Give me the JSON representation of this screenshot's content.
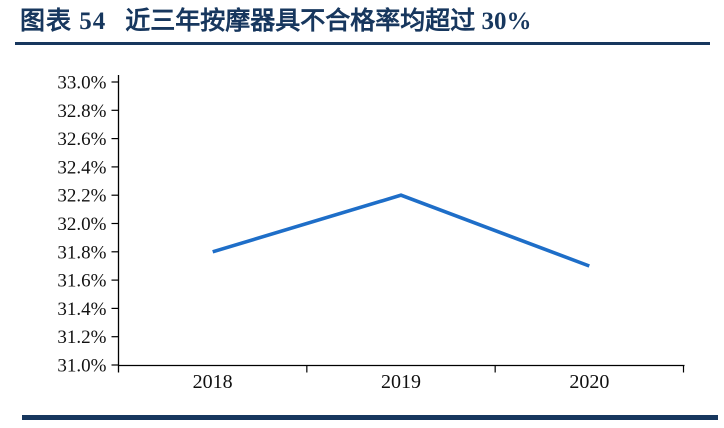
{
  "page": {
    "background_color": "#FFFFFF"
  },
  "header": {
    "figure_label": "图表 54",
    "figure_title": "近三年按摩器具不合格率均超过 30%"
  },
  "colors": {
    "navy_accent": "#17375E",
    "line_blue": "#1E6EC8",
    "axis_color": "#000000",
    "tick_label_color": "#111111"
  },
  "chart_data": {
    "type": "line",
    "title": "近三年按摩器具不合格率均超过 30%",
    "categories": [
      "2018",
      "2019",
      "2020"
    ],
    "values": [
      31.8,
      32.2,
      31.7
    ],
    "unit": "%",
    "ylim": [
      31.0,
      33.0
    ],
    "y_tick_step": 0.2,
    "y_tick_labels": [
      "33.0%",
      "32.8%",
      "32.6%",
      "32.4%",
      "32.2%",
      "32.0%",
      "31.8%",
      "31.6%",
      "31.4%",
      "31.2%",
      "31.0%"
    ],
    "xlabel": "",
    "ylabel": "",
    "grid": false,
    "legend": "none",
    "line_color": "#1E6EC8"
  }
}
